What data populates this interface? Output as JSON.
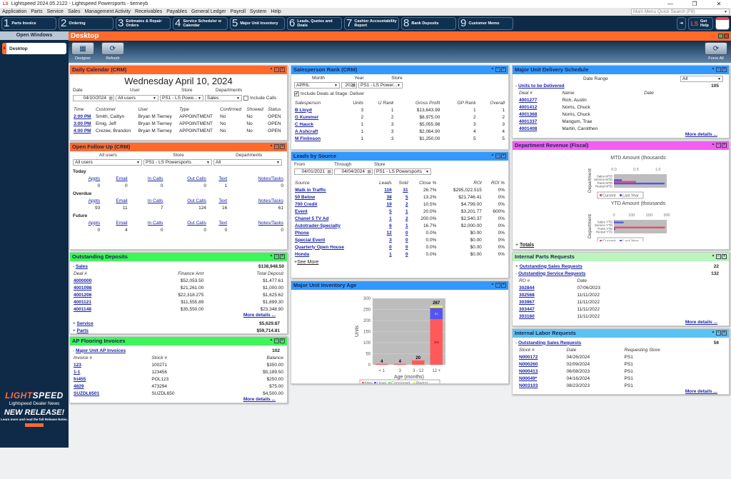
{
  "window": {
    "title": "Lightspeed 2024.05.2122 - Lightspeed Powersports - tierneyb",
    "logo": "LS",
    "controls": [
      "—",
      "❐",
      "✕"
    ]
  },
  "menu": {
    "items": [
      "Application",
      "Parts",
      "Service",
      "Sales",
      "Management Activity",
      "Receivables",
      "Payables",
      "General Ledger",
      "Payroll",
      "System",
      "Help"
    ]
  },
  "search": {
    "placeholder": "Main Menu Quick Search (F9)"
  },
  "toolbar": {
    "buttons": [
      {
        "num": "1",
        "label": "Parts Invoice"
      },
      {
        "num": "2",
        "label": "Ordering"
      },
      {
        "num": "3",
        "label": "Estimates & Repair Orders"
      },
      {
        "num": "4",
        "label": "Service Scheduler w Calendar"
      },
      {
        "num": "5",
        "label": "Major Unit Inventory"
      },
      {
        "num": "6",
        "label": "Leads, Quotes and Deals"
      },
      {
        "num": "7",
        "label": "Cashier Accountability Report"
      },
      {
        "num": "8",
        "label": "Bank Deposits"
      },
      {
        "num": "9",
        "label": "Customer Memo"
      }
    ],
    "get_help": "Get Help",
    "help_logo": "LS"
  },
  "sidebar": {
    "header": "Open Windows",
    "items": [
      {
        "label": "Desktop",
        "close": "x"
      }
    ],
    "news": {
      "brand_a": "LIGHT",
      "brand_b": "SPEED",
      "subtitle": "Lightspeed Dealer News",
      "headline": "NEW RELEASE!",
      "text": "Learn more and read the full Release Notes."
    }
  },
  "desktop": {
    "title": "Desktop",
    "tools": {
      "designer": "Designer",
      "refresh": "Refresh",
      "force_all": "Force All"
    }
  },
  "colors": {
    "orange": "#ff6a2b",
    "green": "#3ef55a",
    "blue": "#3399ff",
    "magenta": "#f25ef2",
    "navy": "#0e2a47",
    "link": "#1a23a6"
  },
  "daily_calendar": {
    "title": "Daily Calendar (CRM)",
    "date_heading": "Wednesday April 10, 2024",
    "labels": {
      "date": "Date",
      "user": "User",
      "store": "Store",
      "departments": "Departments",
      "include_calls": "Include Calls"
    },
    "values": {
      "date": "04/10/2024",
      "user": "All users",
      "store": "PS1 - LS Powe...",
      "departments": "Sales",
      "include_calls": false
    },
    "columns": [
      "Time",
      "Customer",
      "User",
      "Type",
      "Confirmed",
      "Showed",
      "Status"
    ],
    "rows": [
      [
        "2:00 PM",
        "Smith, Caitlyn",
        "Bryan M Tierney",
        "APPOINTMENT",
        "No",
        "No",
        "OPEN"
      ],
      [
        "3:00 PM",
        "Emig, Jeff",
        "Bryan M Tierney",
        "APPOINTMENT",
        "No",
        "No",
        "OPEN"
      ],
      [
        "4:00 PM",
        "Crezee, Brandon",
        "Bryan M Tierney",
        "APPOINTMENT",
        "No",
        "No",
        "OPEN"
      ]
    ]
  },
  "open_follow_up": {
    "title": "Open Follow Up (CRM)",
    "labels": {
      "users": "All users",
      "store": "Store",
      "departments": "Departments"
    },
    "values": {
      "users": "All users",
      "store": "PS1 - LS Powersports",
      "departments": "All"
    },
    "columns": [
      "Appts",
      "Email",
      "In Calls",
      "Out Calls",
      "Text",
      "Notes/Tasks"
    ],
    "sections": [
      {
        "label": "Today",
        "values": [
          "0",
          "0",
          "0",
          "0",
          "1",
          "0"
        ]
      },
      {
        "label": "Overdue",
        "values": [
          "93",
          "11",
          "7",
          "124",
          "16",
          "61"
        ]
      },
      {
        "label": "Future",
        "values": [
          "0",
          "4",
          "0",
          "0",
          "0",
          "0"
        ]
      }
    ]
  },
  "outstanding_deposits": {
    "title": "Outstanding Deposits",
    "sales": {
      "label": "Sales",
      "total": "$138,948.50",
      "expand": "-"
    },
    "columns": [
      "Deal #",
      "Finance Amt",
      "Total Deposit"
    ],
    "rows": [
      [
        "4000000",
        "$52,053.50",
        "$1,477.61"
      ],
      [
        "4001098",
        "$21,261.00",
        "$1,000.00"
      ],
      [
        "4001206",
        "$22,318.275",
        "$1,625.62"
      ],
      [
        "4001121",
        "$11,555.89",
        "$1,899.30"
      ],
      [
        "4001148",
        "$35,550.00",
        "$23,348.90"
      ]
    ],
    "more": "More details ...",
    "service": {
      "label": "Service",
      "total": "$5,629.87",
      "expand": "+"
    },
    "parts": {
      "label": "Parts",
      "total": "$59,714.81",
      "expand": "+"
    }
  },
  "ap_flooring": {
    "title": "AP Flooring Invoices",
    "group": {
      "label": "Major Unit AP Invoices",
      "count": "102",
      "expand": "-"
    },
    "columns": [
      "Invoice #",
      "Stock #",
      "Balance"
    ],
    "rows": [
      [
        "123",
        "100271",
        "$350.00"
      ],
      [
        "1-1",
        "123456",
        "$5,189.50"
      ],
      [
        "fri455",
        "POL123",
        "$250.00"
      ],
      [
        "4829",
        "473294",
        "$75.00"
      ],
      [
        "SUZDL6501",
        "SUZDL650",
        "$4,500.00"
      ]
    ],
    "more": "More details ..."
  },
  "salesperson_rank": {
    "title": "Salesperson Rank (CRM)",
    "labels": {
      "month": "Month",
      "year": "Year",
      "store": "Store",
      "include": "Include Deals at Stage: Deliver"
    },
    "values": {
      "month": "APRIL",
      "year": "2024",
      "store": "PS1 - LS Power...",
      "include": true
    },
    "columns": [
      "Salesperson",
      "Units",
      "U Rank",
      "Gross Profit",
      "GP Rank",
      "Overall"
    ],
    "rows": [
      [
        "B Lloyd",
        "3",
        "1",
        "$13,643.99",
        "1",
        "1"
      ],
      [
        "G Kummer",
        "2",
        "2",
        "$8,975.00",
        "2",
        "2"
      ],
      [
        "C Hauck",
        "1",
        "3",
        "$5,055.98",
        "3",
        "3"
      ],
      [
        "A Ashcraft",
        "1",
        "3",
        "$2,064.90",
        "4",
        "4"
      ],
      [
        "M Finlinson",
        "1",
        "3",
        "$1,250.00",
        "5",
        "5"
      ]
    ]
  },
  "leads_by_source": {
    "title": "Leads by Source",
    "labels": {
      "from": "From",
      "through": "Through",
      "store": "Store"
    },
    "values": {
      "from": "04/01/2021",
      "through": "04/04/2024",
      "store": "PS1 - LS Powersports"
    },
    "columns": [
      "Source",
      "Leads",
      "Sold",
      "Close %",
      "ROI",
      "ROI %"
    ],
    "rows": [
      [
        "Walk in Traffic",
        "116",
        "31",
        "26.7%",
        "$295,022.515",
        "0%"
      ],
      [
        "50 Below",
        "38",
        "5",
        "13.2%",
        "$21,746.41",
        "0%"
      ],
      [
        "700 Credit",
        "19",
        "2",
        "10.5%",
        "$4,799.00",
        "0%"
      ],
      [
        "Event",
        "5",
        "1",
        "20.0%",
        "$3,201.77",
        "600%"
      ],
      [
        "Chanel 5 TV Ad",
        "1",
        "2",
        "200.0%",
        "$2,540.37",
        "0%"
      ],
      [
        "Autotrader-Specialty",
        "6",
        "1",
        "16.7%",
        "$2,000.00",
        "0%"
      ],
      [
        "Phone",
        "12",
        "0",
        "0.0%",
        "$0.00",
        "0%"
      ],
      [
        "Special Event",
        "3",
        "0",
        "0.0%",
        "$0.00",
        "0%"
      ],
      [
        "Quarterly Open House",
        "0",
        "0",
        "0.0%",
        "$0.00",
        "0%"
      ],
      [
        "Honda",
        "1",
        "0",
        "0.0%",
        "$0.00",
        "0%"
      ]
    ],
    "see_more": "See More"
  },
  "inventory_age": {
    "title": "Major Unit Inventory Age"
  },
  "delivery_schedule": {
    "title": "Major Unit Delivery Schedule",
    "labels": {
      "date_range": "Date Range"
    },
    "values": {
      "date_range": "All"
    },
    "group": {
      "label": "Units to be Delivered",
      "count": "105",
      "expand": "-"
    },
    "columns": [
      "Deal #",
      "Name",
      "Date"
    ],
    "rows": [
      [
        "4001277",
        "Rich, Austin",
        ""
      ],
      [
        "4001412",
        "Norris, Chuck",
        ""
      ],
      [
        "4001368",
        "Norris, Chuck",
        ""
      ],
      [
        "4001337",
        "Mangum, Trae",
        ""
      ],
      [
        "4001408",
        "Martin, Carolthen",
        ""
      ]
    ],
    "more": "More details ..."
  },
  "dept_revenue": {
    "title": "Department Revenue (Fiscal)",
    "totals": "Totals",
    "totals_expand": "+"
  },
  "internal_parts": {
    "title": "Internal Parts Requests",
    "sales": {
      "label": "Outstanding Sales Requests",
      "count": "22",
      "expand": "+"
    },
    "service": {
      "label": "Outstanding Service Requests",
      "count": "132",
      "expand": "-"
    },
    "columns": [
      "RO #",
      "Date"
    ],
    "rows": [
      [
        "302844",
        "07/06/2023"
      ],
      [
        "302568",
        "11/11/2022"
      ],
      [
        "303967",
        "11/11/2022"
      ],
      [
        "303447",
        "11/11/2022"
      ],
      [
        "303160",
        "11/11/2022"
      ]
    ],
    "more": "More details ..."
  },
  "internal_labor": {
    "title": "Internal Labor Requests",
    "group": {
      "label": "Outstanding Sales Requests",
      "count": "56",
      "expand": "-"
    },
    "columns": [
      "Stock #",
      "Date",
      "Requesting Store"
    ],
    "rows": [
      [
        "N000172",
        "04/26/2024",
        "PS1"
      ],
      [
        "N000260",
        "02/09/2024",
        "PS1"
      ],
      [
        "N000413",
        "06/08/2023",
        "PS1"
      ],
      [
        "N00049*",
        "04/16/2024",
        "PS1"
      ],
      [
        "N003103",
        "08/23/2023",
        "PS1"
      ]
    ],
    "more": "More details ..."
  },
  "chart_data": [
    {
      "type": "bar",
      "stacked": true,
      "xlabel": "Age (months)",
      "ylabel": "Units",
      "ylim": [
        0,
        300
      ],
      "yticks": [
        0,
        50,
        100,
        150,
        200,
        250,
        300
      ],
      "categories": [
        "< 1",
        "3",
        "3 - 12",
        "12 +"
      ],
      "series": [
        {
          "name": "New",
          "color": "#ff5a5a",
          "values": [
            4,
            4,
            20,
            206
          ]
        },
        {
          "name": "Used",
          "color": "#5555ee",
          "values": [
            0,
            0,
            0,
            51
          ]
        },
        {
          "name": "Consigned",
          "color": "#66dd66",
          "values": [
            0,
            0,
            0,
            0
          ]
        },
        {
          "name": "Rental",
          "color": "#eeee66",
          "values": [
            0,
            0,
            0,
            10
          ]
        }
      ],
      "totals": [
        4,
        4,
        20,
        267
      ],
      "segment_labels": {
        "New": "206",
        "Used": "51"
      },
      "legend": "bottom",
      "grid": true
    },
    {
      "type": "bar",
      "orientation": "horizontal",
      "title": "MTD Amount (thousands",
      "ylabel": "Department",
      "categories": [
        "Sales MTD",
        "Service MTD",
        "Parts MTD",
        "Rental MTD"
      ],
      "xlim": [
        0,
        1.2
      ],
      "xticks": [
        "0.0",
        "0.5",
        "1.0"
      ],
      "series": [
        {
          "name": "Current",
          "color": "#e0506a",
          "values": [
            0,
            0,
            0.5,
            0
          ]
        },
        {
          "name": "Last Year",
          "color": "#5555ee",
          "values": [
            0,
            0.18,
            1.15,
            0
          ]
        }
      ],
      "legend": "bottom"
    },
    {
      "type": "bar",
      "orientation": "horizontal",
      "title": "YTD Amount (thousands",
      "ylabel": "Department",
      "categories": [
        "Sales YTD",
        "Service YTD",
        "Parts YTD",
        "Rental YTD"
      ],
      "xlim": [
        0,
        300
      ],
      "xticks": [
        "0",
        "100",
        "200",
        "300"
      ],
      "series": [
        {
          "name": "Current",
          "color": "#e0506a",
          "values": [
            3,
            0,
            290,
            0
          ]
        },
        {
          "name": "Last Year",
          "color": "#5555ee",
          "values": [
            55,
            0,
            8,
            0
          ]
        }
      ],
      "legend": "bottom"
    }
  ]
}
